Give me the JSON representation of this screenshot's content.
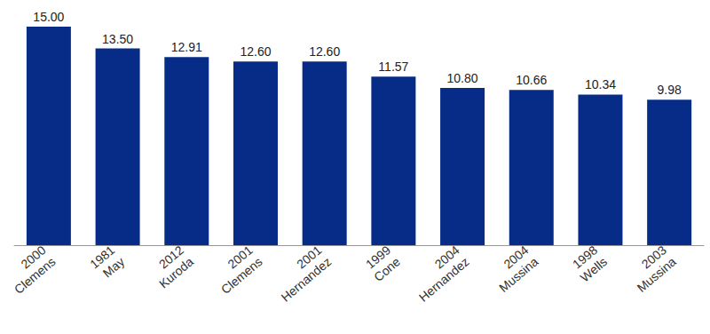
{
  "chart_data": {
    "type": "bar",
    "categories": [
      "2000\nClemens",
      "1981\nMay",
      "2012\nKuroda",
      "2001\nClemens",
      "2001\nHernandez",
      "1999\nCone",
      "2004\nHernandez",
      "2004\nMussina",
      "1998\nWells",
      "2003\nMussina"
    ],
    "values": [
      15.0,
      13.5,
      12.91,
      12.6,
      12.6,
      11.57,
      10.8,
      10.66,
      10.34,
      9.98
    ],
    "value_labels": [
      "15.00",
      "13.50",
      "12.91",
      "12.60",
      "12.60",
      "11.57",
      "10.80",
      "10.66",
      "10.34",
      "9.98"
    ],
    "color": "#062c87",
    "ylim": [
      0,
      15
    ],
    "data_labels": true,
    "tick_labels": "x",
    "grid": false
  }
}
